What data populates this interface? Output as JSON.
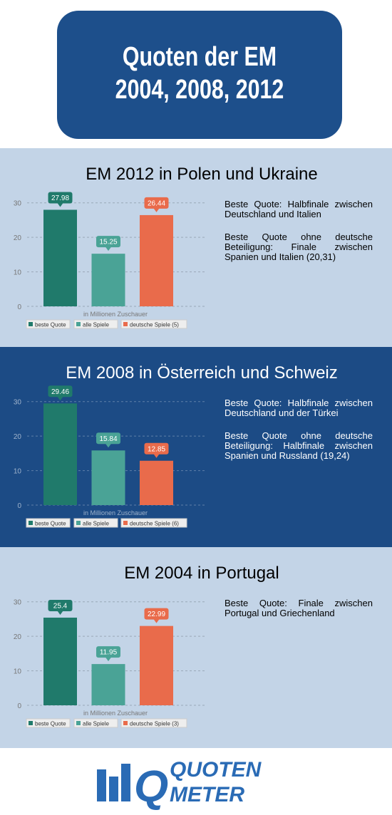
{
  "header": {
    "title_line1": "Quoten der EM",
    "title_line2": "2004, 2008, 2012"
  },
  "chart_data": [
    {
      "type": "bar",
      "title": "EM 2012 in Polen und Ukraine",
      "xlabel": "in Millionen Zuschauer",
      "categories": [
        null
      ],
      "series": [
        {
          "name": "beste Quote",
          "color": "#207a6b",
          "values": [
            27.98
          ]
        },
        {
          "name": "alle Spiele",
          "color": "#4aa396",
          "values": [
            15.25
          ]
        },
        {
          "name": "deutsche Spiele (5)",
          "color": "#e96b4b",
          "values": [
            26.44
          ]
        }
      ],
      "ylim": [
        0,
        32
      ],
      "yticks": [
        0,
        10,
        20,
        30
      ],
      "grid": true,
      "notes": [
        "Beste Quote: Halbfinale zwischen Deutschland und Italien",
        "Beste Quote ohne deutsche Beteiligung: Finale zwischen Spanien und Italien (20,31)"
      ]
    },
    {
      "type": "bar",
      "title": "EM 2008 in Österreich und Schweiz",
      "xlabel": "in Millionen Zuschauer",
      "categories": [
        null
      ],
      "series": [
        {
          "name": "beste Quote",
          "color": "#207a6b",
          "values": [
            29.46
          ]
        },
        {
          "name": "alle Spiele",
          "color": "#4aa396",
          "values": [
            15.84
          ]
        },
        {
          "name": "deutsche Spiele (6)",
          "color": "#e96b4b",
          "values": [
            12.85
          ]
        }
      ],
      "ylim": [
        0,
        32
      ],
      "yticks": [
        0,
        10,
        20,
        30
      ],
      "grid": true,
      "notes": [
        "Beste Quote: Halbfinale zwischen Deutschland und der Türkei",
        "Beste Quote ohne deutsche Beteiligung: Halbfinale zwischen Spanien und Russland (19,24)"
      ]
    },
    {
      "type": "bar",
      "title": "EM 2004 in Portugal",
      "xlabel": "in Millionen Zuschauer",
      "categories": [
        null
      ],
      "series": [
        {
          "name": "beste Quote",
          "color": "#207a6b",
          "values": [
            25.4
          ]
        },
        {
          "name": "alle Spiele",
          "color": "#4aa396",
          "values": [
            11.95
          ]
        },
        {
          "name": "deutsche Spiele (3)",
          "color": "#e96b4b",
          "values": [
            22.99
          ]
        }
      ],
      "ylim": [
        0,
        32
      ],
      "yticks": [
        0,
        10,
        20,
        30
      ],
      "grid": true,
      "notes": [
        "Beste Quote: Finale zwischen Portugal und Griechenland"
      ]
    }
  ],
  "logo": {
    "line1": "QUOTEN",
    "line2": "METER"
  }
}
